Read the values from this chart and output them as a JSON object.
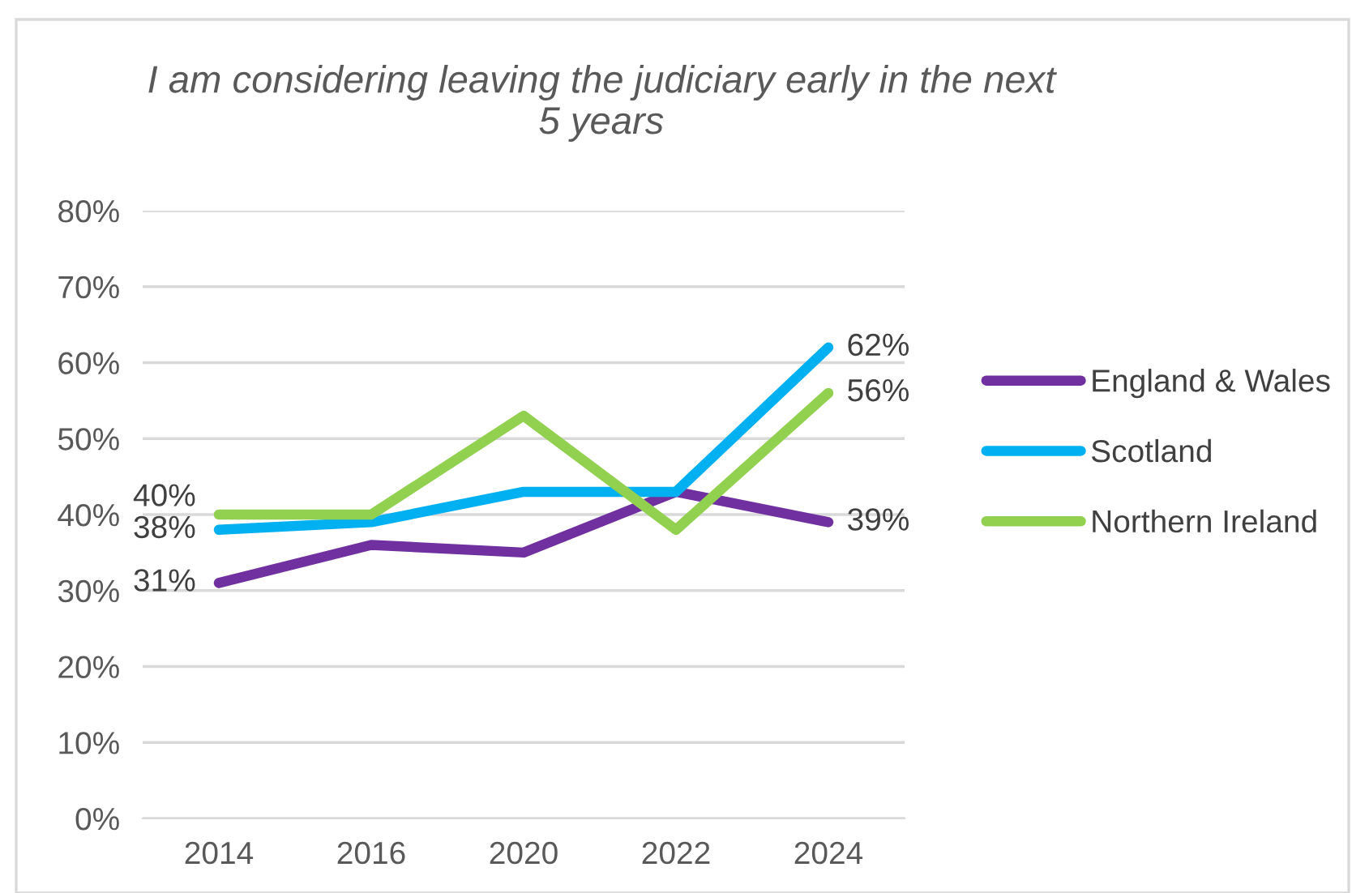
{
  "chart_data": {
    "type": "line",
    "title": "I am considering leaving the judiciary early in the next\n5 years",
    "categories": [
      "2014",
      "2016",
      "2020",
      "2022",
      "2024"
    ],
    "series": [
      {
        "name": "England & Wales",
        "color": "#7030a0",
        "values": [
          31,
          36,
          35,
          43,
          39
        ],
        "value_labels": [
          "31%",
          null,
          null,
          null,
          "39%"
        ]
      },
      {
        "name": "Scotland",
        "color": "#00b0f0",
        "values": [
          38,
          39,
          43,
          43,
          62
        ],
        "value_labels": [
          "38%",
          null,
          null,
          null,
          "62%"
        ]
      },
      {
        "name": "Northern Ireland",
        "color": "#92d050",
        "values": [
          40,
          40,
          53,
          38,
          56
        ],
        "value_labels": [
          "40%",
          null,
          null,
          null,
          "56%"
        ]
      }
    ],
    "ylim": [
      0,
      80
    ],
    "yticks": [
      {
        "value": 0,
        "label": "0%"
      },
      {
        "value": 10,
        "label": "10%"
      },
      {
        "value": 20,
        "label": "20%"
      },
      {
        "value": 30,
        "label": "30%"
      },
      {
        "value": 40,
        "label": "40%"
      },
      {
        "value": 50,
        "label": "50%"
      },
      {
        "value": 60,
        "label": "60%"
      },
      {
        "value": 70,
        "label": "70%"
      },
      {
        "value": 80,
        "label": "80%"
      }
    ],
    "grid": "y",
    "legend": "right",
    "marker": "none",
    "line_style": "solid"
  }
}
